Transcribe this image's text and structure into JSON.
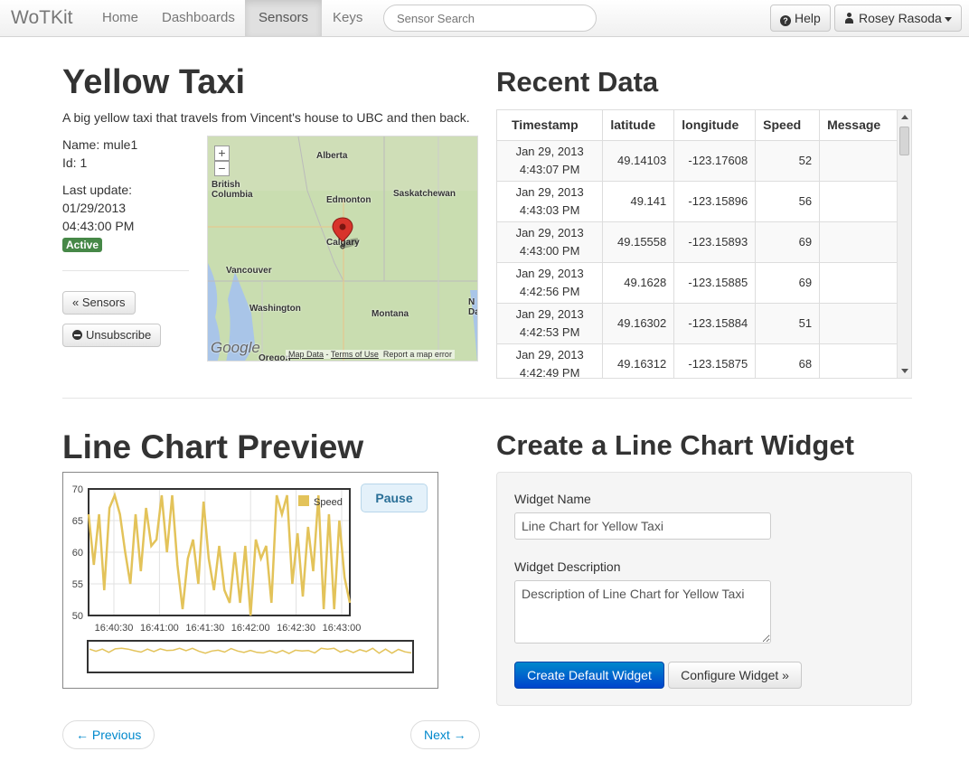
{
  "navbar": {
    "brand": "WoTKit",
    "items": [
      "Home",
      "Dashboards",
      "Sensors",
      "Keys"
    ],
    "active": "Sensors",
    "search_placeholder": "Sensor Search",
    "help_label": "Help",
    "user_label": "Rosey Rasoda"
  },
  "sensor": {
    "title": "Yellow Taxi",
    "description": "A big yellow taxi that travels from Vincent's house to UBC and then back.",
    "name_line": "Name: mule1",
    "id_line": "Id: 1",
    "last_update_label": "Last update:",
    "last_update_date": "01/29/2013",
    "last_update_time": "04:43:00 PM",
    "status": "Active",
    "back_button": "« Sensors",
    "unsubscribe_button": "Unsubscribe"
  },
  "map": {
    "labels": {
      "alberta": "Alberta",
      "british_columbia": "British\nColumbia",
      "edmonton": "Edmonton",
      "saskatchewan": "Saskatchewan",
      "calgary": "Calgary",
      "vancouver": "Vancouver",
      "washington": "Washington",
      "montana": "Montana",
      "oregon": "Oregon",
      "dak": "N\nDa"
    },
    "zoom_in": "+",
    "zoom_out": "−",
    "google": "Google",
    "map_data": "Map Data",
    "separator": " - ",
    "terms": "Terms of Use",
    "report": "Report a map error"
  },
  "recent_data": {
    "title": "Recent Data",
    "columns": [
      "Timestamp",
      "latitude",
      "longitude",
      "Speed",
      "Message"
    ],
    "rows": [
      {
        "date": "Jan 29, 2013",
        "time": "4:43:07 PM",
        "latitude": "49.14103",
        "longitude": "-123.17608",
        "speed": "52",
        "message": ""
      },
      {
        "date": "Jan 29, 2013",
        "time": "4:43:03 PM",
        "latitude": "49.141",
        "longitude": "-123.15896",
        "speed": "56",
        "message": ""
      },
      {
        "date": "Jan 29, 2013",
        "time": "4:43:00 PM",
        "latitude": "49.15558",
        "longitude": "-123.15893",
        "speed": "69",
        "message": ""
      },
      {
        "date": "Jan 29, 2013",
        "time": "4:42:56 PM",
        "latitude": "49.1628",
        "longitude": "-123.15885",
        "speed": "69",
        "message": ""
      },
      {
        "date": "Jan 29, 2013",
        "time": "4:42:53 PM",
        "latitude": "49.16302",
        "longitude": "-123.15884",
        "speed": "51",
        "message": ""
      },
      {
        "date": "Jan 29, 2013",
        "time": "4:42:49 PM",
        "latitude": "49.16312",
        "longitude": "-123.15875",
        "speed": "68",
        "message": ""
      }
    ]
  },
  "chart_section": {
    "title": "Line Chart Preview",
    "pause_button": "Pause"
  },
  "chart_data": {
    "type": "line",
    "xlabel": "",
    "ylabel": "",
    "ylim": [
      50,
      70
    ],
    "yticks": [
      50,
      55,
      60,
      65,
      70
    ],
    "xticks": [
      "16:40:30",
      "16:41:00",
      "16:41:30",
      "16:42:00",
      "16:42:30",
      "16:43:00"
    ],
    "legend": "top-right",
    "grid": true,
    "series": [
      {
        "name": "Speed",
        "color": "#e3c35a",
        "values": [
          66,
          58,
          66,
          54,
          67,
          69,
          66,
          60,
          55,
          66,
          57,
          67,
          61,
          62,
          69,
          60,
          69,
          58,
          51,
          59,
          62,
          55,
          68,
          59,
          54,
          61,
          54,
          52,
          60,
          52,
          61,
          50,
          62,
          59,
          61,
          52,
          69,
          66,
          69,
          55,
          63,
          53,
          64,
          57,
          69,
          51,
          66,
          51,
          65,
          56,
          52
        ]
      }
    ]
  },
  "widget_form": {
    "title": "Create a Line Chart Widget",
    "name_label": "Widget Name",
    "name_value": "Line Chart for Yellow Taxi",
    "desc_label": "Widget Description",
    "desc_value": "Description of Line Chart for Yellow Taxi",
    "create_button": "Create Default Widget",
    "configure_button": "Configure Widget »"
  },
  "pager": {
    "previous": "← Previous",
    "next": "Next →"
  }
}
